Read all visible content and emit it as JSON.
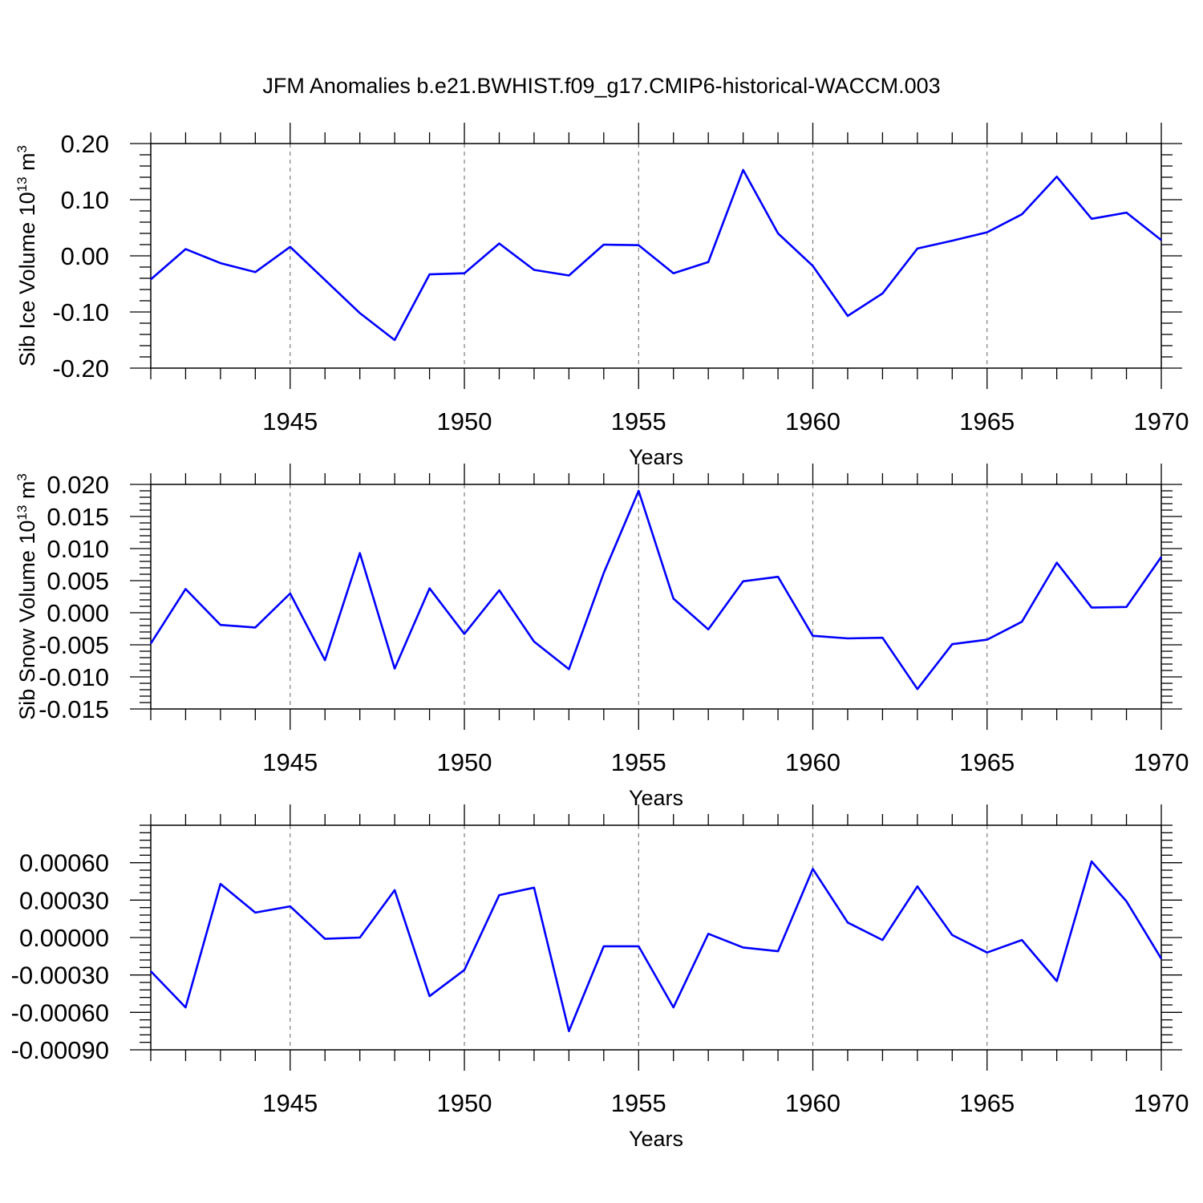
{
  "title": "JFM Anomalies b.e21.BWHIST.f09_g17.CMIP6-historical-WACCM.003",
  "colors": {
    "line": "#0000ff",
    "axis": "#000000",
    "grid": "#7f7f7f"
  },
  "chart_data": [
    {
      "type": "line",
      "title": "",
      "xlabel": "Years",
      "ylabel_main": "Sib Ice Volume 10",
      "ylabel_exp": "13",
      "ylabel_unit": " m",
      "ylabel_unit_exp": "3",
      "xlim": [
        1941,
        1970
      ],
      "ylim": [
        -0.2,
        0.2
      ],
      "x_ticks": [
        "1945",
        "1950",
        "1955",
        "1960",
        "1965",
        "1970"
      ],
      "y_ticks": [
        "0.20",
        "0.10",
        "0.00",
        "-0.10",
        "-0.20"
      ],
      "grid": "vertical dashed at major x ticks",
      "series": [
        {
          "x": [
            1941,
            1942,
            1943,
            1944,
            1945,
            1946,
            1947,
            1948,
            1949,
            1950,
            1951,
            1952,
            1953,
            1954,
            1955,
            1956,
            1957,
            1958,
            1959,
            1960,
            1961,
            1962,
            1963,
            1964,
            1965,
            1966,
            1967,
            1968,
            1969,
            1970
          ],
          "values": [
            -0.042,
            0.012,
            -0.013,
            -0.029,
            0.016,
            -0.043,
            -0.102,
            -0.15,
            -0.033,
            -0.031,
            0.022,
            -0.025,
            -0.035,
            0.02,
            0.019,
            -0.031,
            -0.011,
            0.153,
            0.04,
            -0.018,
            -0.107,
            -0.067,
            0.013,
            0.027,
            0.042,
            0.074,
            0.141,
            0.066,
            0.077,
            0.028
          ]
        }
      ]
    },
    {
      "type": "line",
      "title": "",
      "xlabel": "Years",
      "ylabel_main": "Sib Snow Volume 10",
      "ylabel_exp": "13",
      "ylabel_unit": " m",
      "ylabel_unit_exp": "3",
      "xlim": [
        1941,
        1970
      ],
      "ylim": [
        -0.015,
        0.02
      ],
      "x_ticks": [
        "1945",
        "1950",
        "1955",
        "1960",
        "1965",
        "1970"
      ],
      "y_ticks": [
        "0.020",
        "0.015",
        "0.010",
        "0.005",
        "0.000",
        "-0.005",
        "-0.010",
        "-0.015"
      ],
      "grid": "vertical dashed at major x ticks",
      "series": [
        {
          "x": [
            1941,
            1942,
            1943,
            1944,
            1945,
            1946,
            1947,
            1948,
            1949,
            1950,
            1951,
            1952,
            1953,
            1954,
            1955,
            1956,
            1957,
            1958,
            1959,
            1960,
            1961,
            1962,
            1963,
            1964,
            1965,
            1966,
            1967,
            1968,
            1969,
            1970
          ],
          "values": [
            -0.0048,
            0.0037,
            -0.0019,
            -0.0023,
            0.003,
            -0.0074,
            0.0093,
            -0.0087,
            0.0038,
            -0.0033,
            0.0035,
            -0.0045,
            -0.0088,
            0.0062,
            0.019,
            0.0022,
            -0.0026,
            0.0049,
            0.0056,
            -0.0036,
            -0.004,
            -0.0039,
            -0.0119,
            -0.0049,
            -0.0042,
            -0.0014,
            0.0078,
            0.0008,
            0.0009,
            0.0087
          ]
        }
      ]
    },
    {
      "type": "line",
      "title": "",
      "xlabel": "Years",
      "ylabel_main": "",
      "ylabel_exp": "",
      "ylabel_unit": "",
      "ylabel_unit_exp": "",
      "xlim": [
        1941,
        1970
      ],
      "ylim": [
        -0.0009,
        0.0009
      ],
      "x_ticks": [
        "1945",
        "1950",
        "1955",
        "1960",
        "1965",
        "1970"
      ],
      "y_ticks": [
        "0.00060",
        "0.00030",
        "0.00000",
        "-0.00030",
        "-0.00060",
        "-0.00090"
      ],
      "grid": "vertical dashed at major x ticks",
      "series": [
        {
          "x": [
            1941,
            1942,
            1943,
            1944,
            1945,
            1946,
            1947,
            1948,
            1949,
            1950,
            1951,
            1952,
            1953,
            1954,
            1955,
            1956,
            1957,
            1958,
            1959,
            1960,
            1961,
            1962,
            1963,
            1964,
            1965,
            1966,
            1967,
            1968,
            1969,
            1970
          ],
          "values": [
            -0.00027,
            -0.00056,
            0.00043,
            0.0002,
            0.00025,
            -1e-05,
            0.0,
            0.00038,
            -0.00047,
            -0.00026,
            0.00034,
            0.0004,
            -0.00075,
            -7e-05,
            -7e-05,
            -0.00056,
            3e-05,
            -8e-05,
            -0.00011,
            0.00055,
            0.00012,
            -2e-05,
            0.00041,
            2e-05,
            -0.00012,
            -2e-05,
            -0.00035,
            0.00061,
            0.00029,
            -0.00017
          ]
        }
      ]
    }
  ]
}
